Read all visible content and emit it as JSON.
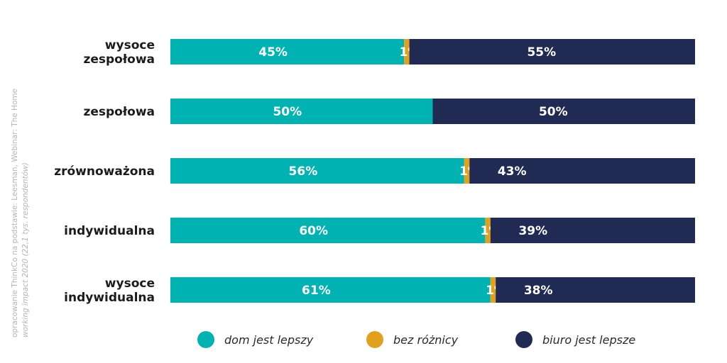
{
  "source_note": {
    "line1": "opracowanie ThinkCo na podstawie: Leesman, Webinar: The Home",
    "line2": "working impact 2020 (22,1 tys. respondentów)"
  },
  "colors": {
    "home": "#00b2b2",
    "neutral": "#e0a21e",
    "office": "#212a52",
    "category_text": "#1b1b1b",
    "legend_text": "#2a2a2a",
    "source_text": "#b5b5b5"
  },
  "chart_data": {
    "type": "bar",
    "orientation": "horizontal",
    "stacked": true,
    "categories": [
      [
        "wysoce",
        "zespołowa"
      ],
      [
        "zespołowa"
      ],
      [
        "zrównoważona"
      ],
      [
        "indywidualna"
      ],
      [
        "wysoce",
        "indywidualna"
      ]
    ],
    "series": [
      {
        "name": "dom jest lepszy",
        "color": "#00b2b2",
        "values": [
          45,
          50,
          56,
          60,
          61
        ],
        "labels": [
          "45%",
          "50%",
          "56%",
          "60%",
          "61%"
        ]
      },
      {
        "name": "bez różnicy",
        "color": "#e0a21e",
        "values": [
          1,
          0,
          1,
          1,
          1
        ],
        "labels": [
          "1%",
          "",
          "1%",
          "1%",
          "1%"
        ]
      },
      {
        "name": "biuro jest lepsze",
        "color": "#212a52",
        "values": [
          55,
          50,
          43,
          39,
          38
        ],
        "labels": [
          "55%",
          "50%",
          "43%",
          "39%",
          "38%"
        ]
      }
    ],
    "legend": "bottom",
    "grid": false
  }
}
